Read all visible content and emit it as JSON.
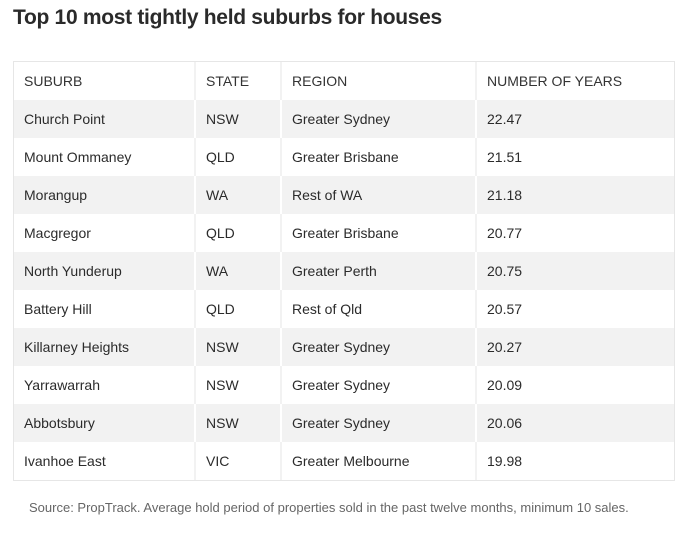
{
  "title": "Top 10 most tightly held suburbs for houses",
  "table": {
    "headers": [
      "SUBURB",
      "STATE",
      "REGION",
      "NUMBER OF YEARS"
    ],
    "rows": [
      [
        "Church Point",
        "NSW",
        "Greater Sydney",
        "22.47"
      ],
      [
        "Mount Ommaney",
        "QLD",
        "Greater Brisbane",
        "21.51"
      ],
      [
        "Morangup",
        "WA",
        "Rest of WA",
        "21.18"
      ],
      [
        "Macgregor",
        "QLD",
        "Greater Brisbane",
        "20.77"
      ],
      [
        "North Yunderup",
        "WA",
        "Greater Perth",
        "20.75"
      ],
      [
        "Battery Hill",
        "QLD",
        "Rest of Qld",
        "20.57"
      ],
      [
        "Killarney Heights",
        "NSW",
        "Greater Sydney",
        "20.27"
      ],
      [
        "Yarrawarrah",
        "NSW",
        "Greater Sydney",
        "20.09"
      ],
      [
        "Abbotsbury",
        "NSW",
        "Greater Sydney",
        "20.06"
      ],
      [
        "Ivanhoe East",
        "VIC",
        "Greater Melbourne",
        "19.98"
      ]
    ]
  },
  "source": "Source: PropTrack. Average hold period of properties sold in the past twelve months, minimum 10 sales."
}
